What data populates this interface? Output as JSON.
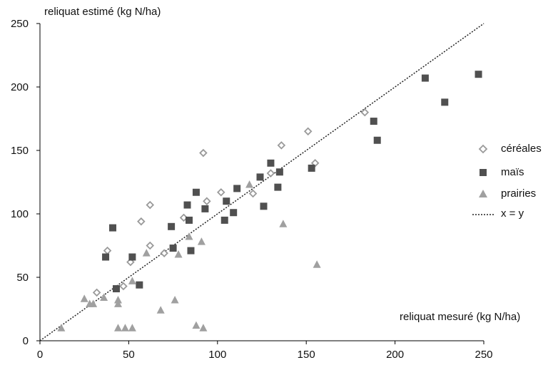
{
  "chart_data": {
    "type": "scatter",
    "xlabel": "reliquat mesuré (kg N/ha)",
    "ylabel": "reliquat estimé (kg N/ha)",
    "xlim": [
      0,
      250
    ],
    "ylim": [
      0,
      250
    ],
    "x_ticks": [
      "0",
      "50",
      "100",
      "150",
      "200",
      "250"
    ],
    "y_ticks": [
      "0",
      "50",
      "100",
      "150",
      "200",
      "250"
    ],
    "grid": false,
    "legend_position": "right",
    "series": [
      {
        "name": "céréales",
        "marker": "diamond-open",
        "color": "#9a9a9a",
        "points": [
          [
            32,
            38
          ],
          [
            38,
            71
          ],
          [
            47,
            43
          ],
          [
            51,
            62
          ],
          [
            57,
            94
          ],
          [
            62,
            107
          ],
          [
            62,
            75
          ],
          [
            70,
            69
          ],
          [
            81,
            97
          ],
          [
            92,
            148
          ],
          [
            94,
            110
          ],
          [
            102,
            117
          ],
          [
            120,
            116
          ],
          [
            130,
            132
          ],
          [
            136,
            154
          ],
          [
            151,
            165
          ],
          [
            155,
            140
          ],
          [
            183,
            180
          ]
        ]
      },
      {
        "name": "maïs",
        "marker": "square",
        "color": "#505050",
        "points": [
          [
            37,
            66
          ],
          [
            41,
            89
          ],
          [
            43,
            41
          ],
          [
            52,
            66
          ],
          [
            56,
            44
          ],
          [
            74,
            90
          ],
          [
            75,
            73
          ],
          [
            83,
            107
          ],
          [
            84,
            95
          ],
          [
            85,
            71
          ],
          [
            88,
            117
          ],
          [
            93,
            104
          ],
          [
            104,
            95
          ],
          [
            105,
            110
          ],
          [
            109,
            101
          ],
          [
            111,
            120
          ],
          [
            124,
            129
          ],
          [
            126,
            106
          ],
          [
            130,
            140
          ],
          [
            134,
            121
          ],
          [
            135,
            133
          ],
          [
            153,
            136
          ],
          [
            188,
            173
          ],
          [
            190,
            158
          ],
          [
            217,
            207
          ],
          [
            228,
            188
          ],
          [
            247,
            210
          ]
        ]
      },
      {
        "name": "prairies",
        "marker": "triangle",
        "color": "#a0a0a0",
        "points": [
          [
            12,
            10
          ],
          [
            25,
            33
          ],
          [
            28,
            29
          ],
          [
            30,
            29
          ],
          [
            36,
            34
          ],
          [
            44,
            32
          ],
          [
            44,
            29
          ],
          [
            44,
            10
          ],
          [
            48,
            10
          ],
          [
            52,
            10
          ],
          [
            52,
            47
          ],
          [
            60,
            69
          ],
          [
            68,
            24
          ],
          [
            76,
            32
          ],
          [
            78,
            68
          ],
          [
            84,
            82
          ],
          [
            88,
            12
          ],
          [
            91,
            78
          ],
          [
            92,
            10
          ],
          [
            118,
            123
          ],
          [
            137,
            92
          ],
          [
            156,
            60
          ]
        ]
      },
      {
        "name": "x = y",
        "line": "dotted",
        "color": "#222222",
        "points": [
          [
            0,
            0
          ],
          [
            250,
            250
          ]
        ]
      }
    ]
  }
}
